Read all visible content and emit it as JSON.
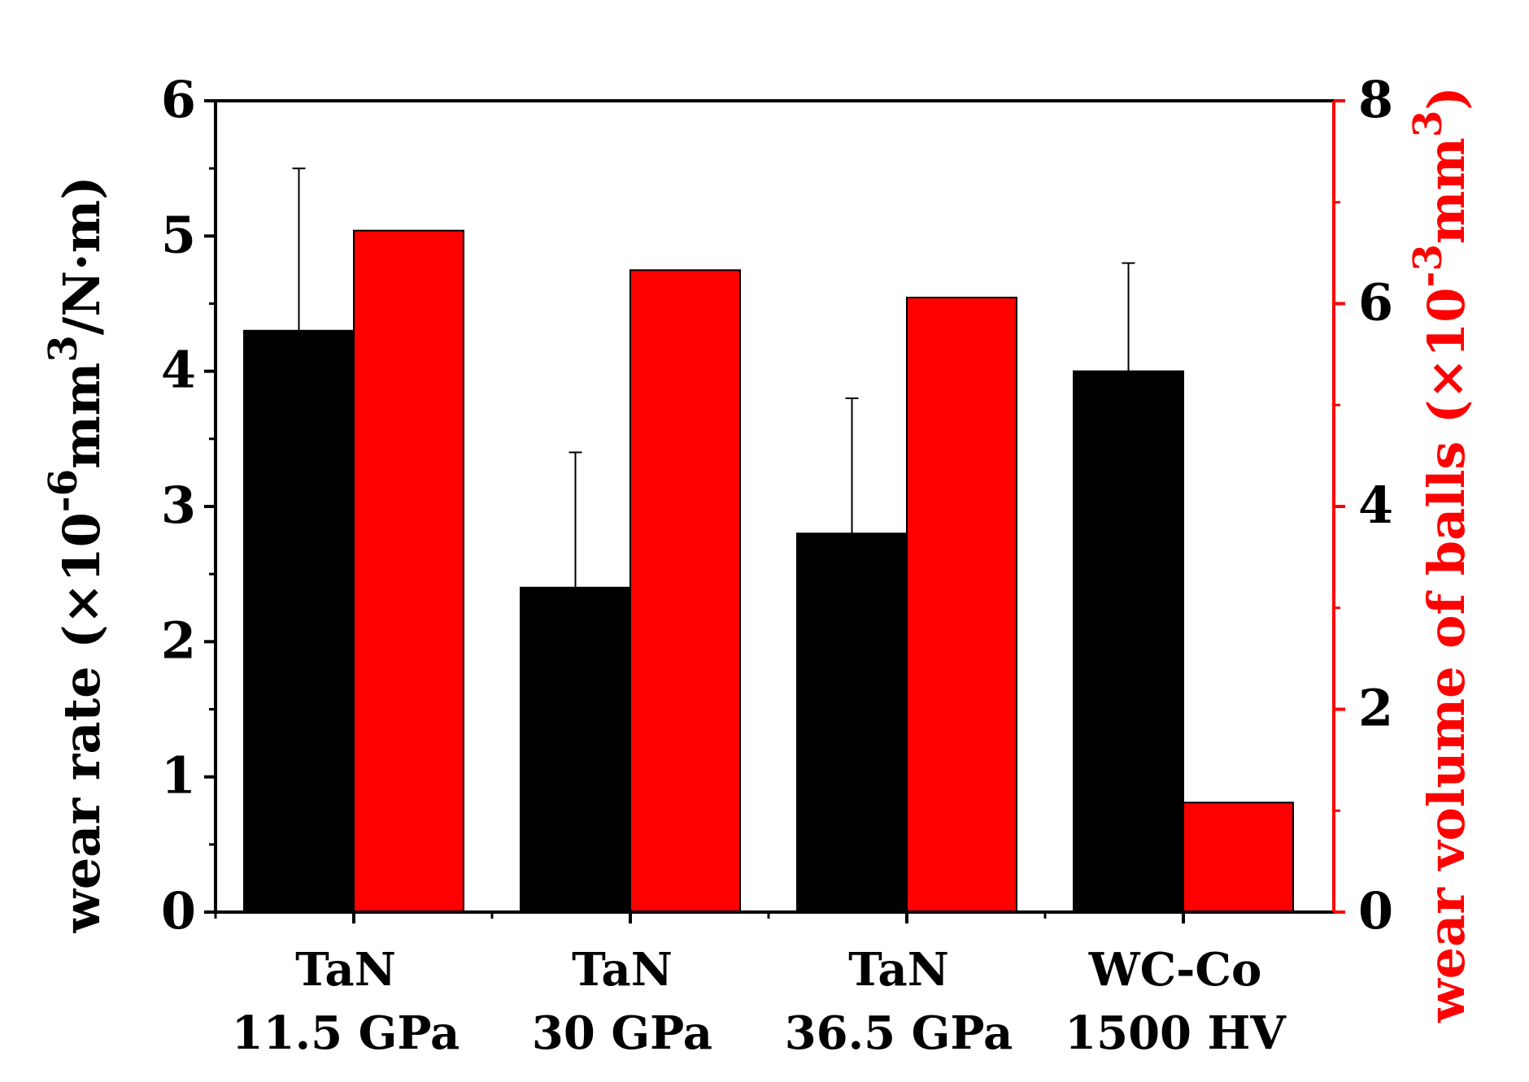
{
  "chart_data": {
    "type": "bar",
    "categories": [
      {
        "line1": "TaN",
        "line2": "11.5 GPa"
      },
      {
        "line1": "TaN",
        "line2": "30 GPa"
      },
      {
        "line1": "TaN",
        "line2": "36.5 GPa"
      },
      {
        "line1": "WC-Co",
        "line2": "1500 HV"
      }
    ],
    "series": [
      {
        "axis": "left",
        "color": "#000000",
        "values": [
          4.3,
          2.4,
          2.8,
          4.0
        ],
        "error_plus": [
          1.2,
          1.0,
          1.0,
          0.8
        ]
      },
      {
        "axis": "right",
        "color": "#ff0000",
        "values": [
          6.72,
          6.33,
          6.06,
          1.08
        ]
      }
    ],
    "left_axis": {
      "label_main": "wear rate (×10",
      "label_sup1": "-6",
      "label_mid": "mm",
      "label_sup2": "3",
      "label_end": "/N·m)",
      "ylim": [
        0,
        6
      ],
      "ticks": [
        "0",
        "1",
        "2",
        "3",
        "4",
        "5",
        "6"
      ],
      "color": "#000000"
    },
    "right_axis": {
      "label_main": "wear volume of balls (×10",
      "label_sup1": "-3",
      "label_mid": "mm",
      "label_sup2": "3",
      "label_end": ")",
      "ylim": [
        0,
        8
      ],
      "ticks": [
        "0",
        "2",
        "4",
        "6",
        "8"
      ],
      "color": "#ff0000"
    },
    "grid": false,
    "legend": "none"
  }
}
